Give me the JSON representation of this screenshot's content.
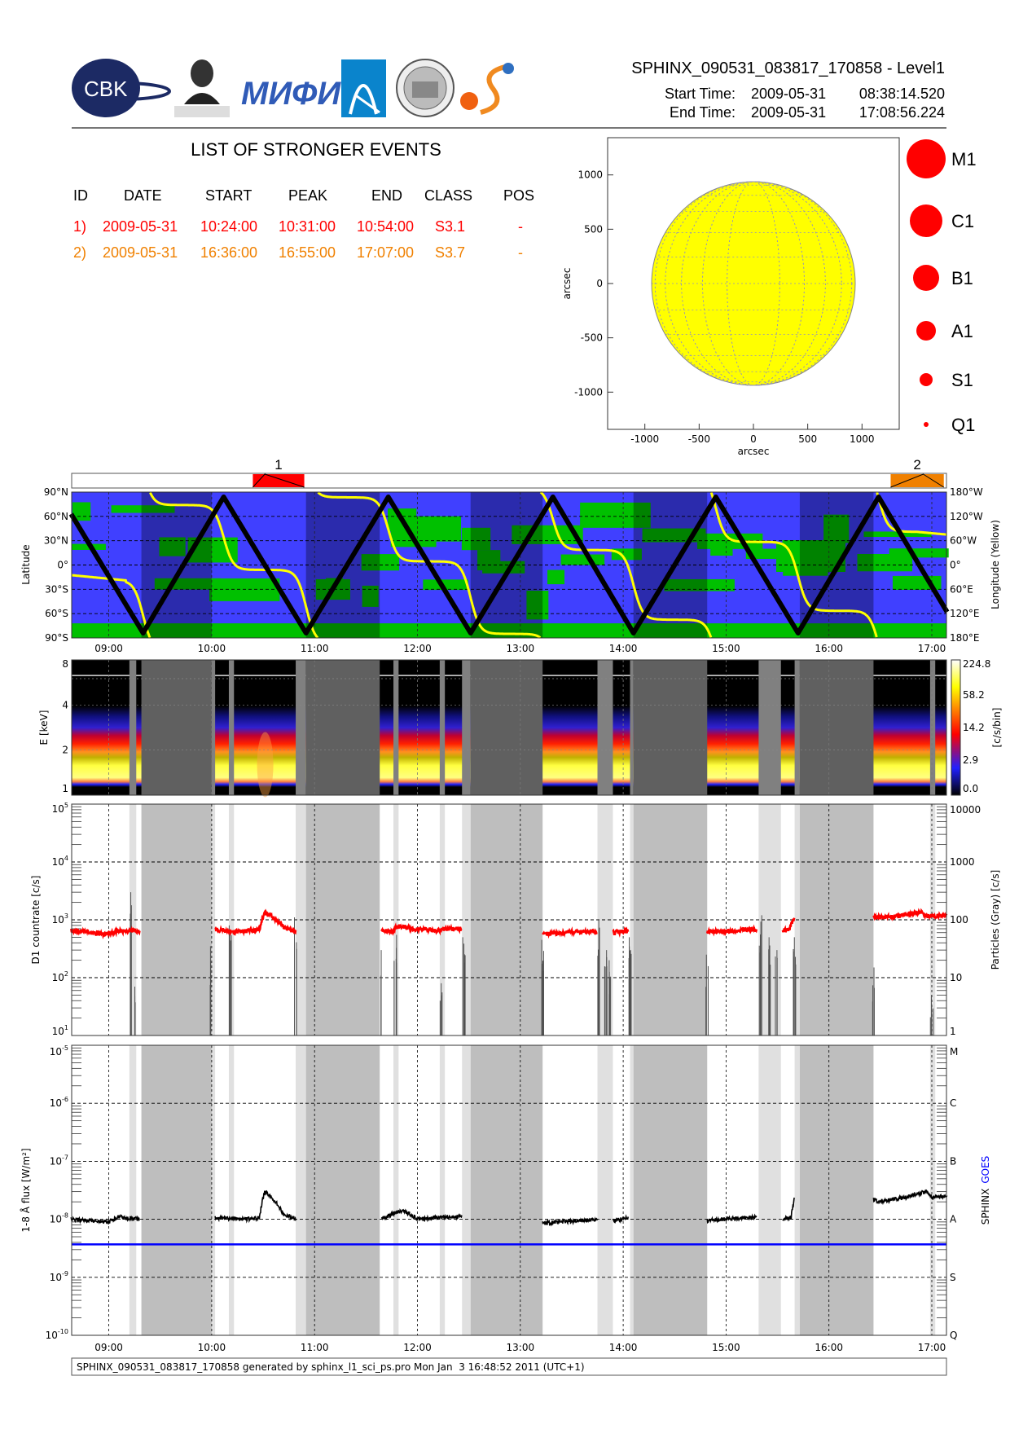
{
  "header": {
    "title": "SPHINX_090531_083817_170858 - Level1",
    "start_label": "Start Time:",
    "start_date": "2009-05-31",
    "start_time": "08:38:14.520",
    "end_label": "End Time:",
    "end_date": "2009-05-31",
    "end_time": "17:08:56.224",
    "logos": [
      "CBK PAN",
      "P.N.Lebedev Physical Institute of the Russian Academy of Science",
      "MIFI",
      "blue-arc-logo",
      "seal-logo",
      "orange-s-logo"
    ],
    "cbk_text": "CBK"
  },
  "events": {
    "title": "LIST OF STRONGER EVENTS",
    "columns": [
      "ID",
      "DATE",
      "START",
      "PEAK",
      "END",
      "CLASS",
      "POS"
    ],
    "rows": [
      {
        "id": "1)",
        "date": "2009-05-31",
        "start": "10:24:00",
        "peak": "10:31:00",
        "end": "10:54:00",
        "class": "S3.1",
        "pos": "-",
        "color": "#ff0000"
      },
      {
        "id": "2)",
        "date": "2009-05-31",
        "start": "16:36:00",
        "peak": "16:55:00",
        "end": "17:07:00",
        "class": "S3.7",
        "pos": "-",
        "color": "#f08000"
      }
    ]
  },
  "sun_map": {
    "xlabel": "arcsec",
    "ylabel": "arcsec",
    "xticks": [
      "-1000",
      "-500",
      "0",
      "500",
      "1000"
    ],
    "yticks": [
      "1000",
      "500",
      "0",
      "-500",
      "-1000"
    ],
    "disk_color": "#ffff00",
    "legend": [
      "M1",
      "C1",
      "B1",
      "A1",
      "S1",
      "Q1"
    ],
    "legend_color": "#ff0000"
  },
  "time_ticks": [
    "09:00",
    "10:00",
    "11:00",
    "12:00",
    "13:00",
    "14:00",
    "15:00",
    "16:00",
    "17:00"
  ],
  "footer": "SPHINX_090531_083817_170858 generated by sphinx_l1_sci_ps.pro Mon Jan  3 16:48:52 2011 (UTC+1)",
  "chart_data": [
    {
      "type": "timeline",
      "name_labels": [
        "1",
        "2"
      ],
      "events": [
        {
          "label": "1",
          "start": "10:24",
          "peak": "10:31",
          "end": "10:54",
          "color": "#ff0000"
        },
        {
          "label": "2",
          "start": "16:36",
          "peak": "16:55",
          "end": "17:07",
          "color": "#f08000"
        }
      ]
    },
    {
      "type": "line",
      "ylabel": "Latitude",
      "y2label": "Longitude (Yellow)",
      "yticks": [
        "90°N",
        "60°N",
        "30°N",
        "0°",
        "30°S",
        "60°S",
        "90°S"
      ],
      "y2ticks": [
        "180°W",
        "120°W",
        "60°W",
        "0°",
        "60°E",
        "120°E",
        "180°E"
      ],
      "ylim": [
        -90,
        90
      ],
      "y2lim": [
        180,
        -180
      ],
      "latitude_track": {
        "start": [
          "08:38",
          63
        ],
        "end": [
          "17:09",
          -58
        ],
        "extremes": [
          [
            "09:20",
            -84
          ],
          [
            "10:07",
            84
          ],
          [
            "10:55",
            -84
          ],
          [
            "11:43",
            84
          ],
          [
            "12:31",
            -84
          ],
          [
            "13:19",
            84
          ],
          [
            "14:06",
            -84
          ],
          [
            "14:54",
            84
          ],
          [
            "15:42",
            -84
          ],
          [
            "16:29",
            84
          ]
        ]
      },
      "longitude_track_deg_east": [
        [
          "08:38",
          25
        ],
        [
          "09:10",
          38
        ],
        [
          "09:43",
          -148
        ],
        [
          "10:30",
          12
        ],
        [
          "11:19",
          -167
        ],
        [
          "12:06",
          -9
        ],
        [
          "12:54",
          170
        ],
        [
          "13:42",
          -37
        ],
        [
          "14:30",
          135
        ],
        [
          "15:18",
          -57
        ],
        [
          "16:06",
          113
        ],
        [
          "16:51",
          -82
        ],
        [
          "17:09",
          -75
        ]
      ],
      "colors": {
        "ocean": "#4040ff",
        "land": "#00c000",
        "latitude": "#000000",
        "longitude": "#ffff00"
      }
    },
    {
      "type": "heatmap",
      "ylabel": "E [keV]",
      "yticks": [
        "1",
        "2",
        "4",
        "8"
      ],
      "ylim": [
        1,
        8
      ],
      "colorbar_label": "[c/s/bin]",
      "colorbar_ticks": [
        "224.8",
        "58.2",
        "14.2",
        "2.9",
        "0.0"
      ]
    },
    {
      "type": "line",
      "ylabel": "D1 countrate [c/s]",
      "y2label": "Particles (Gray) [c/s]",
      "yticks": [
        "10^5",
        "10^4",
        "10^3",
        "10^2",
        "10^1"
      ],
      "y2ticks": [
        "10000",
        "1000",
        "100",
        "10",
        "1"
      ],
      "ylim": [
        10,
        100000
      ],
      "y2lim": [
        1,
        10000
      ],
      "yscale": "log",
      "countrate_color": "#ff0000",
      "particles_color": "#505050",
      "countrate": [
        [
          [
            "08:38",
            650
          ],
          [
            "08:50",
            600
          ],
          [
            "08:57",
            560
          ],
          [
            "09:06",
            640
          ],
          [
            "09:18",
            640
          ]
        ],
        [
          [
            "10:02",
            680
          ],
          [
            "10:12",
            620
          ],
          [
            "10:24",
            650
          ],
          [
            "10:28",
            700
          ],
          [
            "10:31",
            1300
          ],
          [
            "10:35",
            1150
          ],
          [
            "10:42",
            750
          ],
          [
            "10:49",
            620
          ]
        ],
        [
          [
            "11:39",
            650
          ],
          [
            "11:45",
            620
          ],
          [
            "11:48",
            760
          ],
          [
            "11:53",
            740
          ],
          [
            "12:00",
            680
          ],
          [
            "12:13",
            650
          ],
          [
            "12:16",
            700
          ],
          [
            "12:26",
            700
          ]
        ],
        [
          [
            "13:13",
            560
          ],
          [
            "13:30",
            610
          ],
          [
            "13:42",
            630
          ],
          [
            "13:45",
            580
          ]
        ],
        [
          [
            "13:54",
            600
          ],
          [
            "14:03",
            640
          ]
        ],
        [
          [
            "14:49",
            620
          ],
          [
            "15:18",
            680
          ]
        ],
        [
          [
            "15:33",
            650
          ],
          [
            "15:37",
            700
          ],
          [
            "15:40",
            1100
          ]
        ],
        [
          [
            "16:26",
            1100
          ],
          [
            "16:40",
            1150
          ],
          [
            "16:54",
            1350
          ],
          [
            "16:57",
            1150
          ],
          [
            "17:09",
            1200
          ]
        ]
      ],
      "particles": [
        [
          "09:13",
          300
        ],
        [
          "09:16",
          7
        ],
        [
          "10:00",
          35
        ],
        [
          "10:11",
          80
        ],
        [
          "10:49",
          110
        ],
        [
          "11:38",
          30
        ],
        [
          "11:47",
          55
        ],
        [
          "12:14",
          8
        ],
        [
          "12:27",
          50
        ],
        [
          "13:13",
          45
        ],
        [
          "13:46",
          100
        ],
        [
          "13:50",
          30
        ],
        [
          "13:52",
          20
        ],
        [
          "14:04",
          50
        ],
        [
          "14:49",
          25
        ],
        [
          "15:20",
          120
        ],
        [
          "15:25",
          50
        ],
        [
          "15:29",
          30
        ],
        [
          "15:40",
          50
        ],
        [
          "16:26",
          15
        ],
        [
          "17:00",
          5
        ]
      ]
    },
    {
      "type": "line",
      "ylabel": "1-8 Å flux [W/m²]",
      "y2label_parts": [
        "SPHINX",
        "GOES"
      ],
      "yticks": [
        "10^-5",
        "10^-6",
        "10^-7",
        "10^-8",
        "10^-9",
        "10^-10"
      ],
      "y2ticks": [
        "M",
        "C",
        "B",
        "A",
        "S",
        "Q"
      ],
      "ylim": [
        1e-10,
        1e-05
      ],
      "yscale": "log",
      "sphinx_color": "#000000",
      "goes_color": "#0000ff",
      "goes_level": 3.7e-09,
      "sphinx": [
        [
          [
            "08:38",
            1e-08
          ],
          [
            "09:00",
            9e-09
          ],
          [
            "09:06",
            1.1e-08
          ],
          [
            "09:18",
            1e-08
          ]
        ],
        [
          [
            "10:02",
            1.05e-08
          ],
          [
            "10:24",
            1e-08
          ],
          [
            "10:28",
            1.1e-08
          ],
          [
            "10:31",
            3e-08
          ],
          [
            "10:36",
            2.2e-08
          ],
          [
            "10:42",
            1.2e-08
          ],
          [
            "10:49",
            1e-08
          ]
        ],
        [
          [
            "11:39",
            1e-08
          ],
          [
            "11:47",
            1.3e-08
          ],
          [
            "11:52",
            1.4e-08
          ],
          [
            "12:00",
            1e-08
          ],
          [
            "12:16",
            1.1e-08
          ],
          [
            "12:26",
            1.1e-08
          ]
        ],
        [
          [
            "13:13",
            8.5e-09
          ],
          [
            "13:45",
            1e-08
          ]
        ],
        [
          [
            "13:54",
            9.5e-09
          ],
          [
            "14:03",
            1.05e-08
          ]
        ],
        [
          [
            "14:49",
            9.5e-09
          ],
          [
            "15:18",
            1.1e-08
          ]
        ],
        [
          [
            "15:33",
            1e-08
          ],
          [
            "15:38",
            1.1e-08
          ],
          [
            "15:40",
            2.3e-08
          ]
        ],
        [
          [
            "16:26",
            2.2e-08
          ],
          [
            "16:30",
            2e-08
          ],
          [
            "16:45",
            2.4e-08
          ],
          [
            "16:57",
            3e-08
          ],
          [
            "17:00",
            2.4e-08
          ],
          [
            "17:09",
            2.5e-08
          ]
        ]
      ]
    }
  ],
  "bands": {
    "dark": [
      [
        "09:19",
        "10:00"
      ],
      [
        "10:55",
        "11:38"
      ],
      [
        "12:31",
        "13:13"
      ],
      [
        "14:06",
        "14:49"
      ],
      [
        "15:43",
        "16:26"
      ]
    ],
    "light": [
      [
        "09:12",
        "09:16"
      ],
      [
        "10:00",
        "10:02"
      ],
      [
        "10:10",
        "10:13"
      ],
      [
        "10:49",
        "10:55"
      ],
      [
        "11:46",
        "11:49"
      ],
      [
        "12:13",
        "12:16"
      ],
      [
        "12:26",
        "12:31"
      ],
      [
        "13:45",
        "13:54"
      ],
      [
        "14:04",
        "14:06"
      ],
      [
        "15:19",
        "15:32"
      ],
      [
        "15:40",
        "15:43"
      ],
      [
        "16:59",
        "17:02"
      ]
    ]
  }
}
